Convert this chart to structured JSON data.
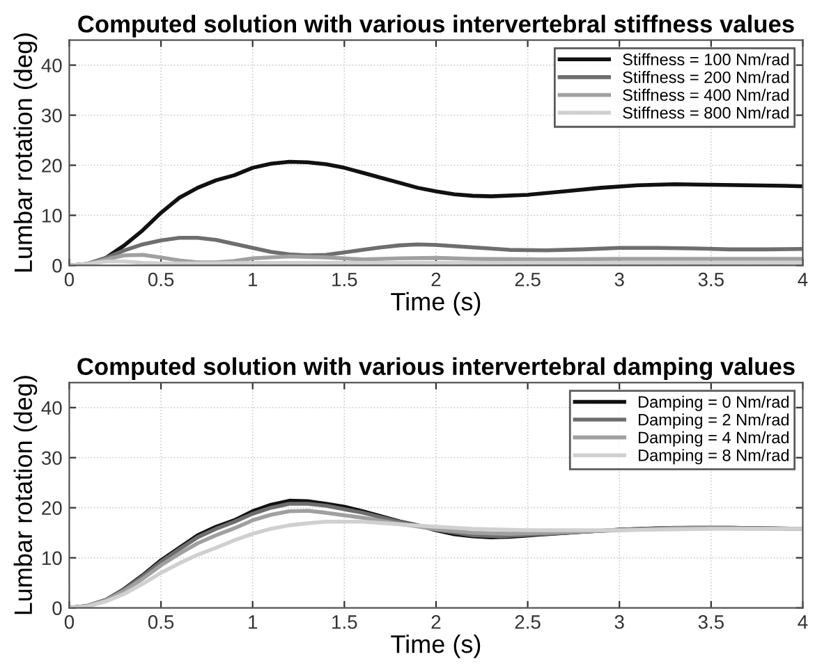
{
  "chart_data": [
    {
      "type": "line",
      "title": "Computed solution with various intervertebral stiffness values",
      "xlabel": "Time (s)",
      "ylabel": "Lumbar rotation (deg)",
      "xlim": [
        0,
        4
      ],
      "ylim": [
        0,
        45
      ],
      "xticks": [
        0,
        0.5,
        1,
        1.5,
        2,
        2.5,
        3,
        3.5,
        4
      ],
      "yticks": [
        0,
        10,
        20,
        30,
        40
      ],
      "grid": true,
      "legend": "top right",
      "line_style": "solid",
      "series": [
        {
          "name": "Stiffness = 100 Nm/rad",
          "color": "#111111",
          "x": [
            0,
            0.1,
            0.2,
            0.3,
            0.4,
            0.5,
            0.6,
            0.7,
            0.8,
            0.9,
            1.0,
            1.1,
            1.2,
            1.3,
            1.4,
            1.5,
            1.6,
            1.7,
            1.8,
            1.9,
            2.0,
            2.1,
            2.2,
            2.3,
            2.5,
            2.7,
            2.9,
            3.1,
            3.3,
            3.5,
            3.7,
            3.9,
            4.0
          ],
          "values": [
            0,
            0.3,
            1.5,
            4,
            7,
            10.5,
            13.5,
            15.5,
            17,
            18,
            19.5,
            20.3,
            20.7,
            20.6,
            20.2,
            19.5,
            18.5,
            17.5,
            16.5,
            15.5,
            14.8,
            14.2,
            13.9,
            13.8,
            14.1,
            14.8,
            15.5,
            16,
            16.2,
            16.1,
            16,
            15.9,
            15.8
          ]
        },
        {
          "name": "Stiffness = 200 Nm/rad",
          "color": "#6e6e6e",
          "x": [
            0,
            0.1,
            0.2,
            0.3,
            0.4,
            0.5,
            0.6,
            0.7,
            0.8,
            0.9,
            1.0,
            1.1,
            1.2,
            1.3,
            1.4,
            1.5,
            1.6,
            1.7,
            1.8,
            1.9,
            2.0,
            2.2,
            2.4,
            2.6,
            2.8,
            3.0,
            3.2,
            3.4,
            3.6,
            3.8,
            4.0
          ],
          "values": [
            0,
            0.3,
            1.5,
            3,
            4.2,
            5,
            5.5,
            5.5,
            5.1,
            4.3,
            3.5,
            2.7,
            2.2,
            2.0,
            2.1,
            2.6,
            3.1,
            3.6,
            4,
            4.2,
            4.1,
            3.6,
            3.1,
            3,
            3.2,
            3.5,
            3.5,
            3.4,
            3.2,
            3.2,
            3.3
          ]
        },
        {
          "name": "Stiffness = 400 Nm/rad",
          "color": "#a0a0a0",
          "x": [
            0,
            0.1,
            0.2,
            0.3,
            0.4,
            0.5,
            0.6,
            0.7,
            0.8,
            0.9,
            1.0,
            1.2,
            1.4,
            1.6,
            1.8,
            2.0,
            2.2,
            2.6,
            3.0,
            3.5,
            4.0
          ],
          "values": [
            0,
            0.3,
            1.2,
            2,
            2.1,
            1.6,
            1,
            0.6,
            0.6,
            0.9,
            1.4,
            1.8,
            1.6,
            1.2,
            1.4,
            1.5,
            1.3,
            1.2,
            1.3,
            1.3,
            1.3
          ]
        },
        {
          "name": "Stiffness = 800 Nm/rad",
          "color": "#d0d0d0",
          "x": [
            0,
            0.1,
            0.2,
            0.3,
            0.4,
            0.5,
            0.7,
            1.0,
            1.5,
            2.0,
            3.0,
            4.0
          ],
          "values": [
            0,
            0.3,
            0.8,
            0.8,
            0.5,
            0.4,
            0.4,
            0.5,
            0.5,
            0.5,
            0.5,
            0.5
          ]
        }
      ]
    },
    {
      "type": "line",
      "title": "Computed solution with various intervertebral damping values",
      "xlabel": "Time (s)",
      "ylabel": "Lumbar rotation (deg)",
      "xlim": [
        0,
        4
      ],
      "ylim": [
        0,
        45
      ],
      "xticks": [
        0,
        0.5,
        1,
        1.5,
        2,
        2.5,
        3,
        3.5,
        4
      ],
      "yticks": [
        0,
        10,
        20,
        30,
        40
      ],
      "grid": true,
      "legend": "top right",
      "line_style": "solid",
      "series": [
        {
          "name": "Damping = 0 Nm/rad",
          "color": "#111111",
          "x": [
            0,
            0.1,
            0.2,
            0.3,
            0.4,
            0.5,
            0.6,
            0.7,
            0.8,
            0.9,
            1.0,
            1.1,
            1.2,
            1.3,
            1.4,
            1.5,
            1.6,
            1.7,
            1.8,
            1.9,
            2.0,
            2.1,
            2.2,
            2.3,
            2.4,
            2.6,
            2.8,
            3.0,
            3.2,
            3.4,
            3.6,
            3.8,
            4.0
          ],
          "values": [
            0,
            0.4,
            1.6,
            3.8,
            6.5,
            9.5,
            12,
            14.5,
            16.2,
            17.5,
            19.3,
            20.6,
            21.4,
            21.3,
            20.8,
            20.2,
            19.3,
            18.3,
            17.3,
            16.5,
            15.5,
            14.7,
            14.3,
            14.1,
            14.2,
            14.7,
            15.2,
            15.6,
            15.9,
            16,
            16,
            15.9,
            15.8
          ]
        },
        {
          "name": "Damping = 2 Nm/rad",
          "color": "#6e6e6e",
          "x": [
            0,
            0.1,
            0.2,
            0.3,
            0.4,
            0.5,
            0.6,
            0.7,
            0.8,
            0.9,
            1.0,
            1.1,
            1.2,
            1.3,
            1.4,
            1.6,
            1.8,
            2.0,
            2.2,
            2.35,
            2.6,
            2.8,
            3.0,
            3.3,
            3.6,
            4.0
          ],
          "values": [
            0,
            0.4,
            1.6,
            3.7,
            6.3,
            9.2,
            11.7,
            14.1,
            15.8,
            17.2,
            18.8,
            20,
            20.8,
            20.8,
            20.4,
            19,
            17.2,
            15.6,
            14.5,
            14.3,
            14.8,
            15.2,
            15.6,
            16,
            16,
            15.8
          ]
        },
        {
          "name": "Damping = 4 Nm/rad",
          "color": "#a0a0a0",
          "x": [
            0,
            0.1,
            0.2,
            0.3,
            0.4,
            0.5,
            0.6,
            0.7,
            0.8,
            0.9,
            1.0,
            1.1,
            1.2,
            1.3,
            1.4,
            1.6,
            1.8,
            2.0,
            2.2,
            2.4,
            2.6,
            3.0,
            3.3,
            3.6,
            4.0
          ],
          "values": [
            0,
            0.4,
            1.5,
            3.4,
            5.8,
            8.5,
            10.8,
            12.9,
            14.5,
            15.9,
            17.5,
            18.6,
            19.3,
            19.4,
            19,
            18,
            16.8,
            15.7,
            15,
            14.8,
            15,
            15.5,
            15.9,
            15.9,
            15.8
          ]
        },
        {
          "name": "Damping = 8 Nm/rad",
          "color": "#d0d0d0",
          "x": [
            0,
            0.1,
            0.2,
            0.3,
            0.4,
            0.5,
            0.6,
            0.7,
            0.8,
            0.9,
            1.0,
            1.1,
            1.2,
            1.3,
            1.4,
            1.6,
            1.8,
            2.0,
            2.2,
            2.5,
            3.0,
            3.5,
            4.0
          ],
          "values": [
            0,
            0.3,
            1.3,
            2.8,
            4.8,
            7,
            8.9,
            10.6,
            12,
            13.5,
            14.8,
            15.8,
            16.5,
            16.9,
            17.2,
            17.2,
            16.7,
            16.2,
            15.8,
            15.5,
            15.5,
            15.8,
            15.8
          ]
        }
      ]
    }
  ]
}
